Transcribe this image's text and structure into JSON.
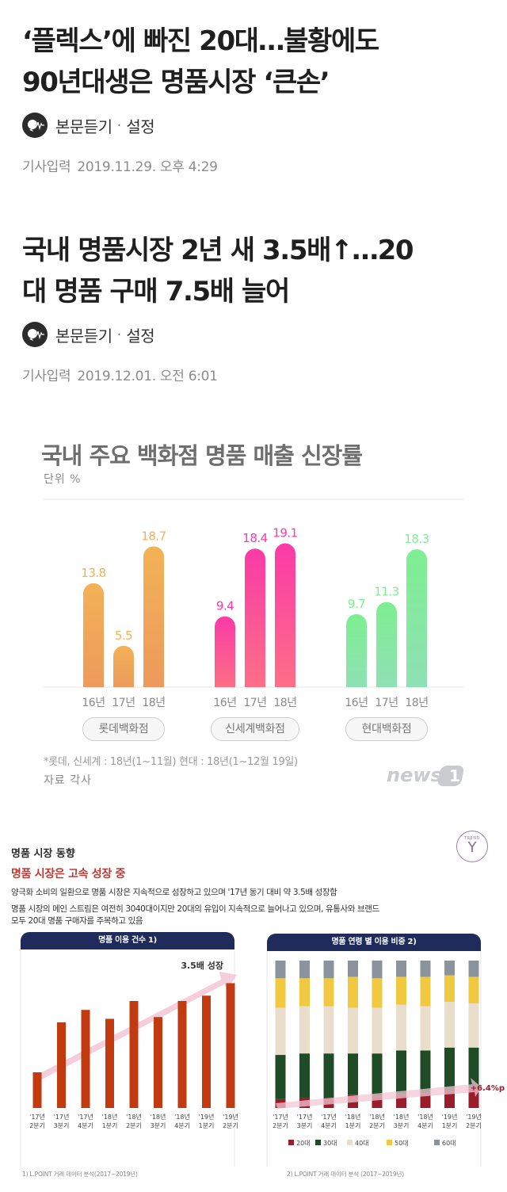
{
  "articles": [
    {
      "headline_line1": "‘플렉스’에 빠진 20대…불황에도",
      "headline_line2": "90년대생은 명품시장 ‘큰손’",
      "listen_label": "본문듣기",
      "separator": "·",
      "settings_label": "설정",
      "timestamp_label": "기사입력",
      "timestamp_value": "2019.11.29. 오후 4:29"
    },
    {
      "headline_line1": "국내 명품시장 2년 새 3.5배↑…20",
      "headline_line2": "대 명품 구매 7.5배 늘어",
      "listen_label": "본문듣기",
      "separator": "·",
      "settings_label": "설정",
      "timestamp_label": "기사입력",
      "timestamp_value": "2019.12.01. 오전 6:01"
    }
  ],
  "chart_data": [
    {
      "type": "bar",
      "title": "국내 주요 백화점 명품 매출 신장률",
      "unit_label": "단위 %",
      "groups": [
        {
          "name": "롯데백화점",
          "categories": [
            "16년",
            "17년",
            "18년"
          ],
          "values": [
            13.8,
            5.5,
            18.7
          ],
          "color_top": "#f3b257",
          "color_bottom": "#ed9a5c"
        },
        {
          "name": "신세계백화점",
          "categories": [
            "16년",
            "17년",
            "18년"
          ],
          "values": [
            9.4,
            18.4,
            19.1
          ],
          "color_top": "#fb3aa8",
          "color_bottom": "#fc6f86"
        },
        {
          "name": "현대백화점",
          "categories": [
            "16년",
            "17년",
            "18년"
          ],
          "values": [
            9.7,
            11.3,
            18.3
          ],
          "color_top": "#7eef91",
          "color_bottom": "#8fe0b4"
        }
      ],
      "note": "*롯데, 신세계 : 18년(1~11월) 현대 : 18년(1~12월 19일)",
      "source": "자료 각사",
      "logo_text": "news1",
      "logo_number": "1"
    },
    {
      "type": "bar",
      "title": "명품 이용 건수 1)",
      "categories": [
        "'17년 2분기",
        "'17년 3분기",
        "'17년 4분기",
        "'18년 1분기",
        "'18년 2분기",
        "'18년 3분기",
        "'18년 4분기",
        "'19년 1분기",
        "'19년 2분기"
      ],
      "values": [
        1.0,
        2.4,
        2.75,
        2.5,
        3.0,
        2.55,
        3.0,
        3.15,
        3.5
      ],
      "color": "#c13a10",
      "annotation": "3.5배 성장",
      "footnote": "1) L.POINT 거래 데이터 분석(2017~2019년)"
    },
    {
      "type": "bar",
      "stacked": true,
      "title": "명품 연령 별 이용 비중 2)",
      "categories": [
        "'17년 2분기",
        "'17년 3분기",
        "'17년 4분기",
        "'18년 1분기",
        "'18년 2분기",
        "'18년 3분기",
        "'18년 4분기",
        "'19년 1분기",
        "'19년 2분기"
      ],
      "series": [
        {
          "name": "20대",
          "color": "#9a1d2a",
          "values": [
            6,
            7,
            7,
            9,
            8,
            9,
            10,
            11,
            13
          ]
        },
        {
          "name": "30대",
          "color": "#1f4b27",
          "values": [
            30,
            30,
            30,
            28,
            29,
            30,
            29,
            30,
            28
          ]
        },
        {
          "name": "40대",
          "color": "#e9ddcc",
          "values": [
            32,
            32,
            32,
            31,
            31,
            31,
            30,
            31,
            30
          ]
        },
        {
          "name": "50대",
          "color": "#f0c940",
          "values": [
            20,
            19,
            19,
            21,
            20,
            19,
            20,
            18,
            18
          ]
        },
        {
          "name": "60대",
          "color": "#8b949c",
          "values": [
            12,
            12,
            12,
            11,
            12,
            11,
            11,
            10,
            11
          ]
        }
      ],
      "annotation": "+6.4%p",
      "footnote": "2) L.POINT 거래 데이터 분석 (2017~2019년)"
    }
  ],
  "infographic": {
    "section_title": "명품 시장 동향",
    "headline": "명품 시장은 고속 성장 중",
    "body_line1": "양극화 소비의 일환으로 명품 시장은 지속적으로 성장하고 있으며 '17년 동기 대비 약 3.5배 성장함",
    "body_line2": "명품 시장의 메인 스트림은 여전히 3040대이지만 20대의 유입이 지속적으로 늘어나고 있으며, 유통사와 브랜드",
    "body_line3": "모두 20대 명품 구매자를 주목하고 있음",
    "badge_small": "TREND",
    "badge_big": "Y"
  },
  "colors": {
    "navy": "#1f2b5a",
    "headline_red": "#c03a33",
    "arrow_pink": "#f3c6d6"
  }
}
